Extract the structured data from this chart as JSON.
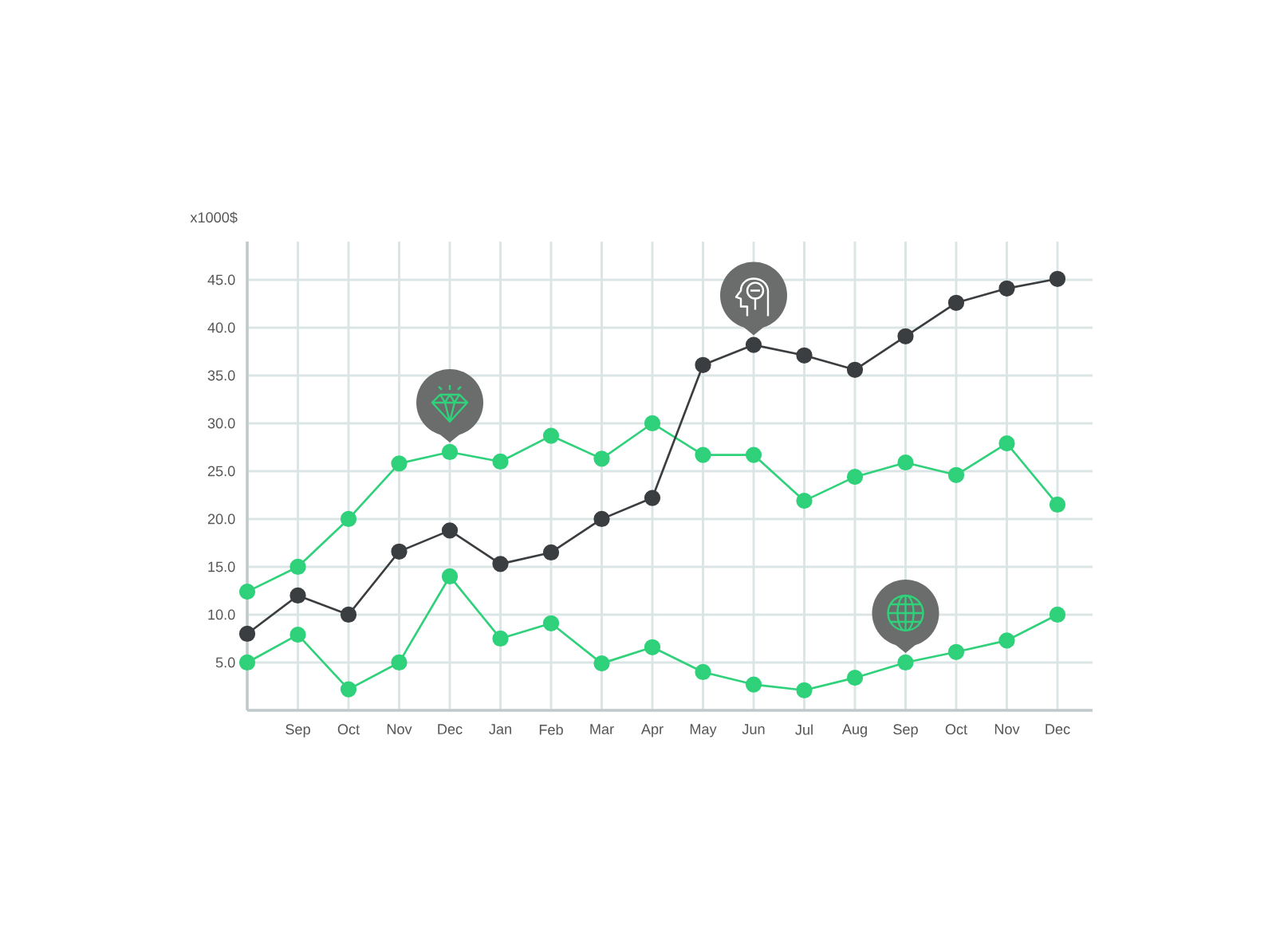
{
  "chart_data": {
    "type": "line",
    "ylabel": "x1000$",
    "categories": [
      null,
      "Sep",
      "Oct",
      "Nov",
      "Dec",
      "Jan",
      "Feb",
      "Mar",
      "Apr",
      "May",
      "Jun",
      "Jul",
      "Aug",
      "Sep",
      "Oct",
      "Nov",
      "Dec"
    ],
    "series": [
      {
        "color": "#2fd17a",
        "values": [
          12.4,
          15.0,
          20.0,
          25.8,
          27.0,
          26.0,
          28.7,
          26.3,
          30.0,
          26.7,
          26.7,
          21.9,
          24.4,
          25.9,
          24.6,
          27.9,
          21.5
        ]
      },
      {
        "color": "#2fd17a",
        "values": [
          5.0,
          7.9,
          2.2,
          5.0,
          14.0,
          7.5,
          9.1,
          4.9,
          6.6,
          4.0,
          2.7,
          2.1,
          3.4,
          5.0,
          6.1,
          7.3,
          10.0
        ]
      },
      {
        "color": "#3b3e41",
        "values": [
          8.0,
          12.0,
          10.0,
          16.6,
          18.8,
          15.3,
          16.5,
          20.0,
          22.2,
          36.1,
          38.2,
          37.1,
          35.6,
          39.1,
          42.6,
          44.1,
          45.1
        ]
      }
    ],
    "ylim": [
      0,
      49
    ],
    "yticks": [
      {
        "value": 5,
        "label": "5.0"
      },
      {
        "value": 10,
        "label": "10.0"
      },
      {
        "value": 15,
        "label": "15.0"
      },
      {
        "value": 20,
        "label": "20.0"
      },
      {
        "value": 25,
        "label": "25.0"
      },
      {
        "value": 30,
        "label": "30.0"
      },
      {
        "value": 35,
        "label": "35.0"
      },
      {
        "value": 40,
        "label": "40.0"
      },
      {
        "value": 45,
        "label": "45.0"
      }
    ],
    "grid": true,
    "marker": "circle",
    "line_style": "solid"
  }
}
